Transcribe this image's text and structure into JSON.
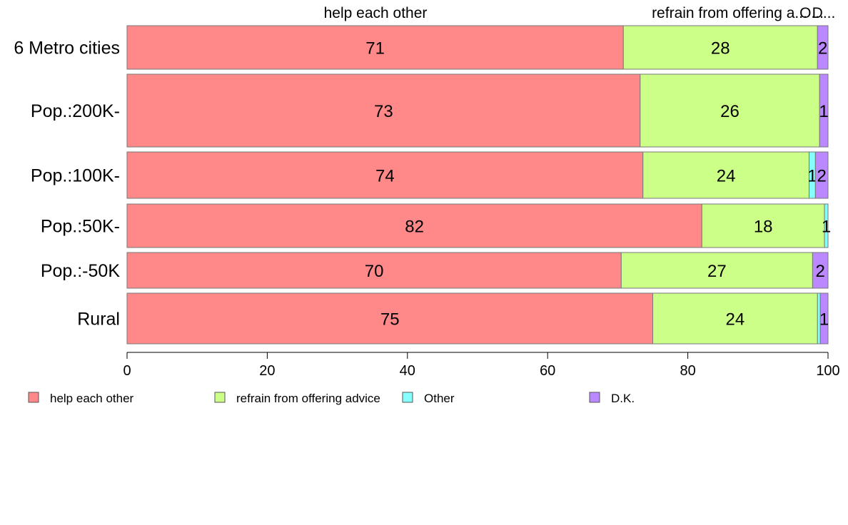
{
  "chart_data": {
    "type": "bar",
    "orientation": "horizontal",
    "stacked": true,
    "categories": [
      "6 Metro cities",
      "Pop.:200K-",
      "Pop.:100K-",
      "Pop.:50K-",
      "Pop.:-50K",
      "Rural"
    ],
    "series": [
      {
        "name": "help each other",
        "color": "#ff8888",
        "values": [
          70.8,
          73.2,
          73.6,
          82.0,
          70.5,
          75.0
        ],
        "labels": [
          "71",
          "73",
          "74",
          "82",
          "70",
          "75"
        ]
      },
      {
        "name": "refrain from offering advice",
        "color": "#ccff88",
        "values": [
          27.7,
          25.6,
          23.7,
          17.5,
          27.3,
          23.5
        ],
        "labels": [
          "28",
          "26",
          "24",
          "18",
          "27",
          "24"
        ]
      },
      {
        "name": "Other",
        "color": "#88ffff",
        "values": [
          0.0,
          0.0,
          0.9,
          0.5,
          0.0,
          0.4
        ],
        "labels": [
          "",
          "",
          "1",
          "1",
          "",
          ""
        ]
      },
      {
        "name": "D.K.",
        "color": "#bb88ff",
        "values": [
          1.5,
          1.2,
          1.8,
          0.0,
          2.2,
          1.1
        ],
        "labels": [
          "2",
          "1",
          "2",
          "",
          "2",
          "1"
        ]
      }
    ],
    "top_labels": [
      "help each other",
      "refrain from offering a...",
      "O...",
      "D..."
    ],
    "xlim": [
      0,
      100
    ],
    "x_ticks": [
      "0",
      "20",
      "40",
      "60",
      "80",
      "100"
    ],
    "legend_position": "bottom"
  }
}
